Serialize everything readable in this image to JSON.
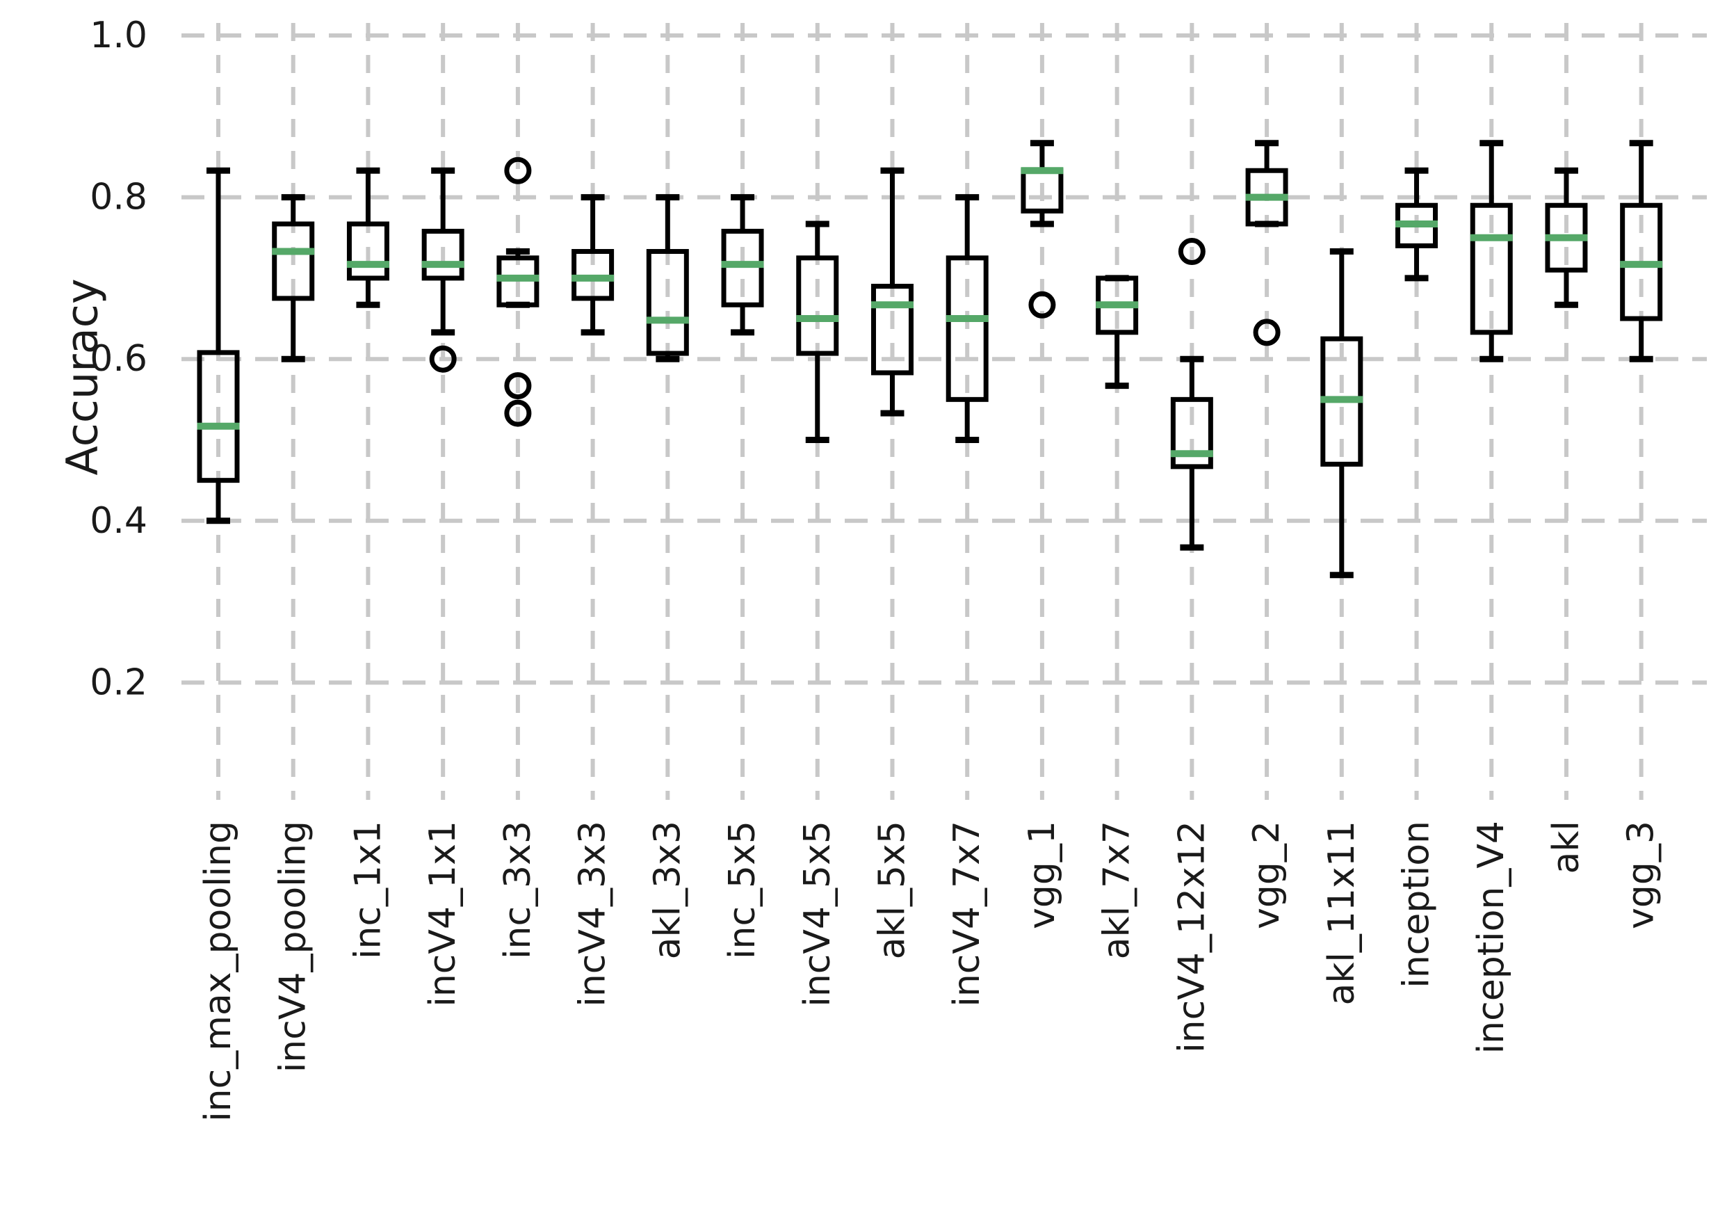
{
  "page": {
    "background": "#ffffff"
  },
  "chart_data": {
    "type": "box",
    "title": "",
    "xlabel": "",
    "ylabel": "Accuracy",
    "yticks": [
      1.0,
      0.8,
      0.6,
      0.4,
      0.2
    ],
    "ytick_labels": [
      "1.0",
      "0.8",
      "0.6",
      "0.4",
      "0.2"
    ],
    "ylim": [
      0.055,
      1.0155
    ],
    "grid": "dashed-both-axes",
    "legend_position": "none",
    "colors": {
      "box_stroke": "#000000",
      "median": "#55a868",
      "grid": "#c8c8c8",
      "text": "#1a1a1a",
      "background": "#ffffff"
    },
    "categories": [
      "inc_max_pooling",
      "incV4_pooling",
      "inc_1x1",
      "incV4_1x1",
      "inc_3x3",
      "incV4_3x3",
      "akl_3x3",
      "inc_5x5",
      "incV4_5x5",
      "akl_5x5",
      "incV4_7x7",
      "vgg_1",
      "akl_7x7",
      "incV4_12x12",
      "vgg_2",
      "akl_11x11",
      "inception",
      "inception_V4",
      "akl",
      "vgg_3"
    ],
    "series": [
      {
        "name": "inc_max_pooling",
        "whisker_low": 0.4,
        "q1": 0.45,
        "median": 0.517,
        "q3": 0.608,
        "whisker_high": 0.833,
        "outliers": []
      },
      {
        "name": "incV4_pooling",
        "whisker_low": 0.6,
        "q1": 0.675,
        "median": 0.733,
        "q3": 0.767,
        "whisker_high": 0.8,
        "outliers": []
      },
      {
        "name": "inc_1x1",
        "whisker_low": 0.667,
        "q1": 0.7,
        "median": 0.717,
        "q3": 0.767,
        "whisker_high": 0.833,
        "outliers": []
      },
      {
        "name": "incV4_1x1",
        "whisker_low": 0.633,
        "q1": 0.7,
        "median": 0.717,
        "q3": 0.758,
        "whisker_high": 0.833,
        "outliers": [
          0.6
        ]
      },
      {
        "name": "inc_3x3",
        "whisker_low": 0.667,
        "q1": 0.667,
        "median": 0.7,
        "q3": 0.725,
        "whisker_high": 0.733,
        "outliers": [
          0.833,
          0.567,
          0.533
        ]
      },
      {
        "name": "incV4_3x3",
        "whisker_low": 0.633,
        "q1": 0.675,
        "median": 0.7,
        "q3": 0.733,
        "whisker_high": 0.8,
        "outliers": []
      },
      {
        "name": "akl_3x3",
        "whisker_low": 0.6,
        "q1": 0.607,
        "median": 0.648,
        "q3": 0.733,
        "whisker_high": 0.8,
        "outliers": []
      },
      {
        "name": "inc_5x5",
        "whisker_low": 0.633,
        "q1": 0.667,
        "median": 0.717,
        "q3": 0.758,
        "whisker_high": 0.8,
        "outliers": []
      },
      {
        "name": "incV4_5x5",
        "whisker_low": 0.5,
        "q1": 0.607,
        "median": 0.65,
        "q3": 0.725,
        "whisker_high": 0.767,
        "outliers": []
      },
      {
        "name": "akl_5x5",
        "whisker_low": 0.533,
        "q1": 0.583,
        "median": 0.667,
        "q3": 0.69,
        "whisker_high": 0.833,
        "outliers": []
      },
      {
        "name": "incV4_7x7",
        "whisker_low": 0.5,
        "q1": 0.55,
        "median": 0.65,
        "q3": 0.725,
        "whisker_high": 0.8,
        "outliers": []
      },
      {
        "name": "vgg_1",
        "whisker_low": 0.767,
        "q1": 0.783,
        "median": 0.833,
        "q3": 0.833,
        "whisker_high": 0.867,
        "outliers": [
          0.667
        ]
      },
      {
        "name": "akl_7x7",
        "whisker_low": 0.567,
        "q1": 0.633,
        "median": 0.667,
        "q3": 0.7,
        "whisker_high": 0.7,
        "outliers": []
      },
      {
        "name": "incV4_12x12",
        "whisker_low": 0.367,
        "q1": 0.467,
        "median": 0.483,
        "q3": 0.55,
        "whisker_high": 0.6,
        "outliers": [
          0.733
        ]
      },
      {
        "name": "vgg_2",
        "whisker_low": 0.767,
        "q1": 0.767,
        "median": 0.8,
        "q3": 0.833,
        "whisker_high": 0.867,
        "outliers": [
          0.633
        ]
      },
      {
        "name": "akl_11x11",
        "whisker_low": 0.333,
        "q1": 0.47,
        "median": 0.55,
        "q3": 0.625,
        "whisker_high": 0.733,
        "outliers": []
      },
      {
        "name": "inception",
        "whisker_low": 0.7,
        "q1": 0.74,
        "median": 0.767,
        "q3": 0.79,
        "whisker_high": 0.833,
        "outliers": []
      },
      {
        "name": "inception_V4",
        "whisker_low": 0.6,
        "q1": 0.633,
        "median": 0.75,
        "q3": 0.79,
        "whisker_high": 0.867,
        "outliers": []
      },
      {
        "name": "akl",
        "whisker_low": 0.667,
        "q1": 0.71,
        "median": 0.75,
        "q3": 0.79,
        "whisker_high": 0.833,
        "outliers": []
      },
      {
        "name": "vgg_3",
        "whisker_low": 0.6,
        "q1": 0.65,
        "median": 0.717,
        "q3": 0.79,
        "whisker_high": 0.867,
        "outliers": []
      }
    ]
  }
}
